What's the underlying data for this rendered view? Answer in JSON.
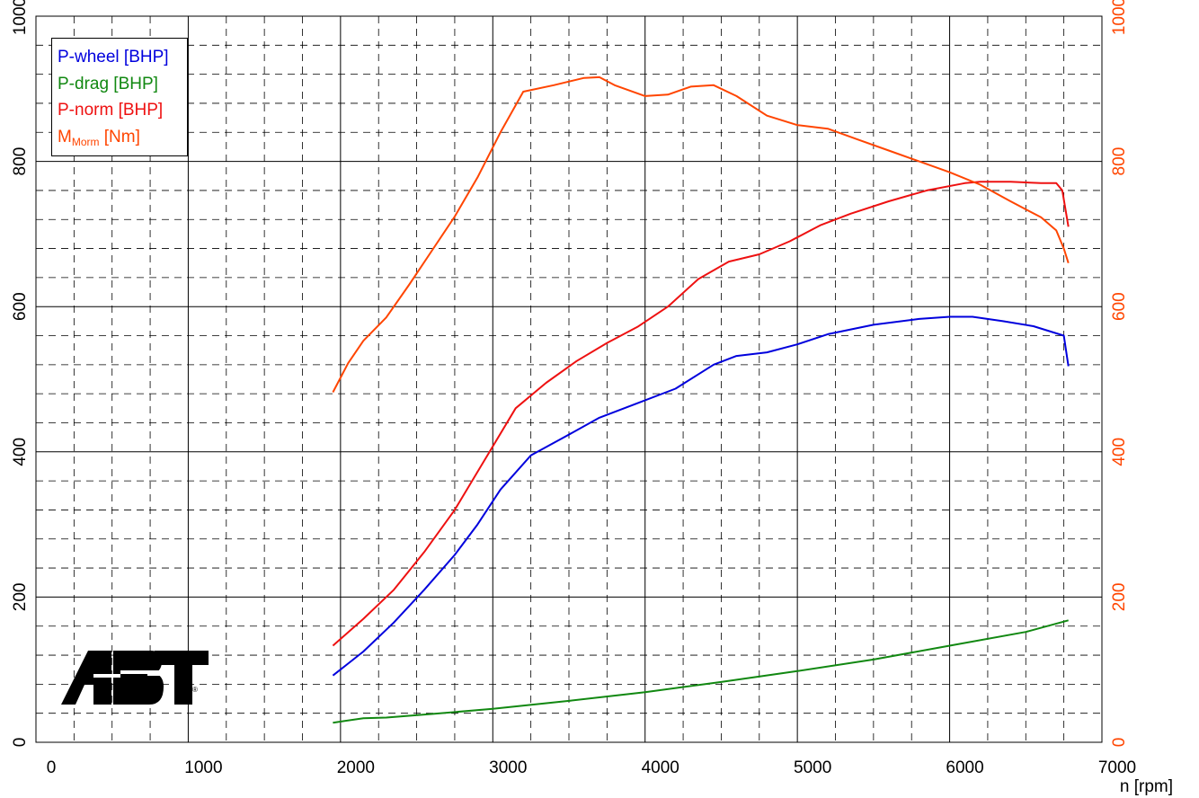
{
  "chart_data": {
    "type": "line",
    "x_axis": {
      "label": "n [rpm]",
      "range": [
        0,
        7000
      ],
      "ticks": [
        0,
        1000,
        2000,
        3000,
        4000,
        5000,
        6000,
        7000
      ],
      "tick_labels": [
        "0",
        "1000",
        "2000",
        "3000",
        "4000",
        "5000",
        "6000",
        "7000"
      ]
    },
    "y_axis_left": {
      "range": [
        0,
        1000
      ],
      "ticks": [
        0,
        200,
        400,
        600,
        800,
        1000
      ],
      "tick_labels": [
        "0",
        "200",
        "400",
        "600",
        "800",
        "1000"
      ],
      "color": "#000000"
    },
    "y_axis_right": {
      "range": [
        0,
        1000
      ],
      "ticks": [
        0,
        200,
        400,
        600,
        800,
        1000
      ],
      "tick_labels": [
        "0",
        "200",
        "400",
        "600",
        "800",
        "1000"
      ],
      "color": "#ff4500"
    },
    "grid": true,
    "legend_placement": "top-left",
    "series": [
      {
        "name": "P-wheel [BHP]",
        "legend_main": "P-wheel [BHP]",
        "legend_sub": "",
        "legend_tail": "",
        "color": "#0000dd",
        "x": [
          1950,
          2150,
          2350,
          2550,
          2750,
          2900,
          3050,
          3250,
          3450,
          3700,
          3950,
          4200,
          4450,
          4600,
          4800,
          5000,
          5200,
          5500,
          5800,
          6000,
          6150,
          6350,
          6550,
          6750,
          6780
        ],
        "y": [
          92,
          125,
          165,
          210,
          258,
          300,
          348,
          395,
          418,
          447,
          467,
          487,
          520,
          532,
          537,
          548,
          562,
          575,
          583,
          586,
          586,
          580,
          573,
          560,
          518
        ]
      },
      {
        "name": "P-drag [BHP]",
        "legend_main": "P-drag [BHP]",
        "legend_sub": "",
        "legend_tail": "",
        "color": "#118811",
        "x": [
          1950,
          2150,
          2300,
          2600,
          3000,
          3500,
          4000,
          4500,
          5000,
          5500,
          6000,
          6500,
          6780
        ],
        "y": [
          27,
          33,
          34,
          39,
          46,
          57,
          69,
          83,
          98,
          114,
          133,
          152,
          168
        ]
      },
      {
        "name": "P-norm [BHP]",
        "legend_main": "P-norm [BHP]",
        "legend_sub": "",
        "legend_tail": "",
        "color": "#ee1111",
        "x": [
          1950,
          2150,
          2350,
          2550,
          2750,
          2950,
          3150,
          3350,
          3550,
          3750,
          3950,
          4150,
          4350,
          4550,
          4750,
          4950,
          5150,
          5350,
          5600,
          5850,
          6100,
          6200,
          6400,
          6600,
          6700,
          6740,
          6780
        ],
        "y": [
          133,
          170,
          210,
          262,
          320,
          390,
          460,
          495,
          525,
          550,
          572,
          600,
          638,
          662,
          672,
          690,
          712,
          728,
          745,
          760,
          770,
          772,
          772,
          770,
          770,
          760,
          710
        ]
      },
      {
        "name": "M_Morm [Nm]",
        "legend_main": "M",
        "legend_sub": "Morm",
        "legend_tail": " [Nm]",
        "color": "#ff4500",
        "x": [
          1950,
          2050,
          2150,
          2300,
          2450,
          2600,
          2750,
          2900,
          3050,
          3200,
          3400,
          3600,
          3700,
          3800,
          4000,
          4150,
          4300,
          4450,
          4600,
          4800,
          5000,
          5200,
          5400,
          5600,
          5800,
          6000,
          6200,
          6400,
          6600,
          6700,
          6750,
          6780
        ],
        "y": [
          482,
          522,
          553,
          585,
          630,
          677,
          724,
          778,
          840,
          896,
          905,
          915,
          916,
          905,
          890,
          892,
          903,
          905,
          890,
          863,
          850,
          845,
          830,
          815,
          800,
          785,
          768,
          745,
          723,
          705,
          680,
          660
        ]
      }
    ]
  },
  "logo": {
    "text": "ABT",
    "registered_mark": "®"
  }
}
